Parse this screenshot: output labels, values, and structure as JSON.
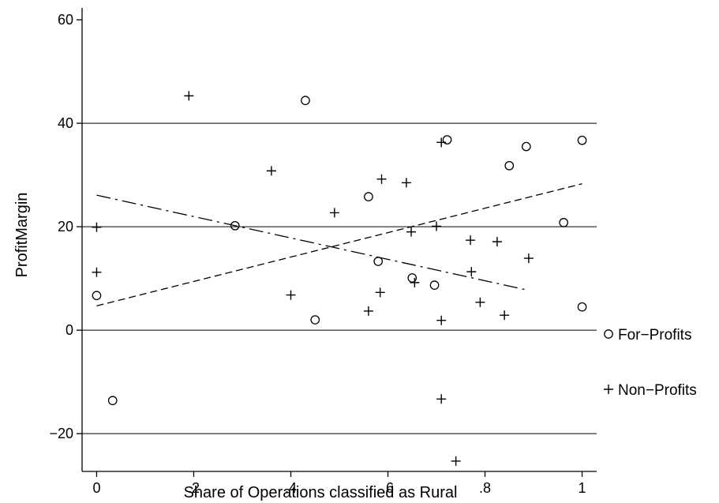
{
  "chart_data": {
    "type": "scatter",
    "title": "",
    "xlabel": "Share of Operations classified as Rural",
    "ylabel": "ProfitMargin",
    "xlim": [
      -0.03,
      1.03
    ],
    "ylim": [
      -27.3,
      62.3
    ],
    "x_ticks": [
      0,
      0.2,
      0.4,
      0.6,
      0.8,
      1
    ],
    "x_tick_labels": [
      "0",
      ".2",
      ".4",
      ".6",
      ".8",
      "1"
    ],
    "y_ticks": [
      -20,
      0,
      20,
      40,
      60
    ],
    "y_tick_labels": [
      "−20",
      "0",
      "20",
      "40",
      "60"
    ],
    "gridlines_y": [
      -20,
      0,
      20,
      40
    ],
    "legend_position": "right",
    "series": [
      {
        "name": "For−Profits",
        "marker": "circle",
        "points": [
          [
            0.0,
            6.7
          ],
          [
            0.033,
            -13.6
          ],
          [
            0.285,
            20.2
          ],
          [
            0.43,
            44.4
          ],
          [
            0.45,
            2.0
          ],
          [
            0.56,
            25.8
          ],
          [
            0.58,
            13.3
          ],
          [
            0.65,
            10.1
          ],
          [
            0.696,
            8.7
          ],
          [
            0.722,
            36.8
          ],
          [
            0.85,
            31.8
          ],
          [
            0.885,
            35.5
          ],
          [
            0.962,
            20.8
          ],
          [
            1.0,
            36.7
          ],
          [
            1.0,
            4.5
          ]
        ],
        "fit_line": {
          "style": "dashed",
          "x": [
            0,
            1
          ],
          "y": [
            4.7,
            28.3
          ]
        }
      },
      {
        "name": "Non−Profits",
        "marker": "plus",
        "points": [
          [
            0.0,
            19.9
          ],
          [
            0.0,
            11.2
          ],
          [
            0.19,
            45.3
          ],
          [
            0.36,
            30.8
          ],
          [
            0.4,
            6.8
          ],
          [
            0.49,
            22.7
          ],
          [
            0.56,
            3.7
          ],
          [
            0.584,
            7.3
          ],
          [
            0.587,
            29.2
          ],
          [
            0.638,
            28.5
          ],
          [
            0.648,
            19.0
          ],
          [
            0.655,
            9.2
          ],
          [
            0.7,
            20.1
          ],
          [
            0.71,
            36.3
          ],
          [
            0.71,
            1.9
          ],
          [
            0.71,
            -13.3
          ],
          [
            0.74,
            -25.3
          ],
          [
            0.77,
            17.4
          ],
          [
            0.772,
            11.3
          ],
          [
            0.79,
            5.4
          ],
          [
            0.825,
            17.1
          ],
          [
            0.84,
            2.9
          ],
          [
            0.89,
            13.9
          ]
        ],
        "fit_line": {
          "style": "dash-dot",
          "x": [
            0,
            0.89
          ],
          "y": [
            26.1,
            7.7
          ]
        }
      }
    ]
  }
}
